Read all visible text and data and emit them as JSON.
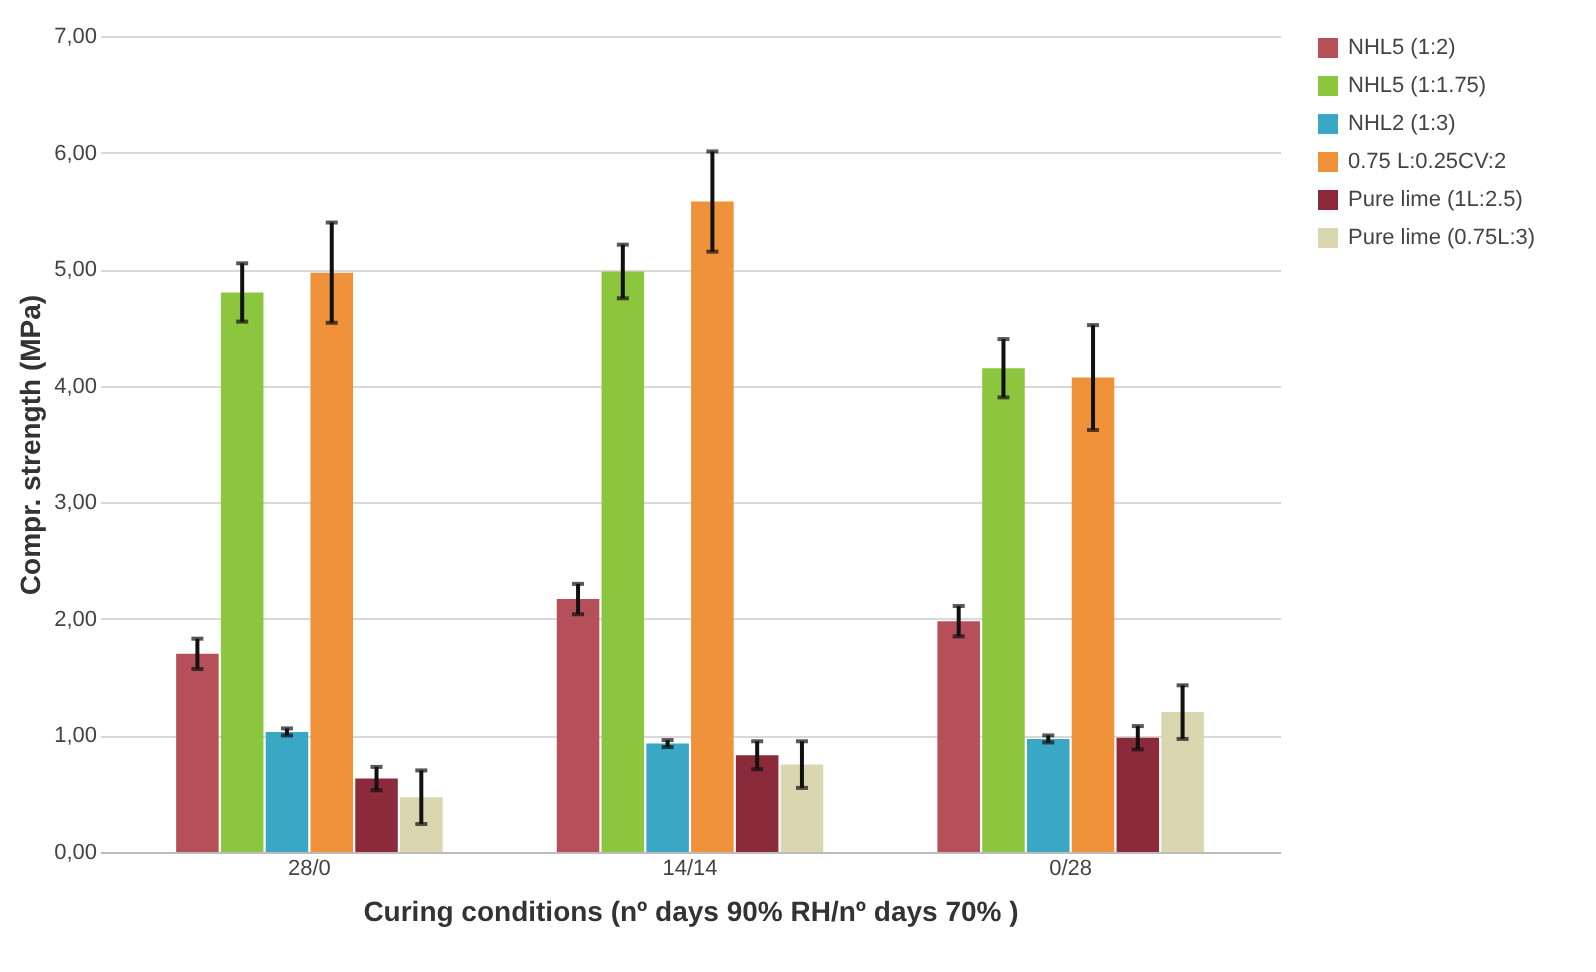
{
  "chart_data": {
    "type": "bar",
    "xlabel": "Curing conditions (nº days 90% RH/nº days 70% )",
    "ylabel": "Compr. strength  (MPa)",
    "categories": [
      "28/0",
      "14/14",
      "0/28"
    ],
    "series": [
      {
        "name": "NHL5 (1:2)",
        "color": "#b5505a",
        "values": [
          1.7,
          2.17,
          1.98
        ],
        "errors": [
          0.13,
          0.13,
          0.13
        ]
      },
      {
        "name": "NHL5 (1:1.75)",
        "color": "#8cc63f",
        "values": [
          4.8,
          4.98,
          4.15
        ],
        "errors": [
          0.25,
          0.23,
          0.25
        ]
      },
      {
        "name": "NHL2 (1:3)",
        "color": "#3aa7c4",
        "values": [
          1.03,
          0.93,
          0.97
        ],
        "errors": [
          0.03,
          0.03,
          0.03
        ]
      },
      {
        "name": "0.75 L:0.25CV:2",
        "color": "#f0923a",
        "values": [
          4.97,
          5.58,
          4.07
        ],
        "errors": [
          0.43,
          0.43,
          0.45
        ]
      },
      {
        "name": "Pure lime (1L:2.5)",
        "color": "#8b2a3a",
        "values": [
          0.63,
          0.83,
          0.98
        ],
        "errors": [
          0.1,
          0.12,
          0.1
        ]
      },
      {
        "name": "Pure lime (0.75L:3)",
        "color": "#d9d6b0",
        "values": [
          0.47,
          0.75,
          1.2
        ],
        "errors": [
          0.23,
          0.2,
          0.23
        ]
      }
    ],
    "ylim": [
      0,
      7
    ],
    "yticks": [
      {
        "value": 0,
        "label": "0,00"
      },
      {
        "value": 1,
        "label": "1,00"
      },
      {
        "value": 2,
        "label": "2,00"
      },
      {
        "value": 3,
        "label": "3,00"
      },
      {
        "value": 4,
        "label": "4,00"
      },
      {
        "value": 5,
        "label": "5,00"
      },
      {
        "value": 6,
        "label": "6,00"
      },
      {
        "value": 7,
        "label": "7,00"
      }
    ],
    "grid": "y",
    "legend": "right"
  }
}
